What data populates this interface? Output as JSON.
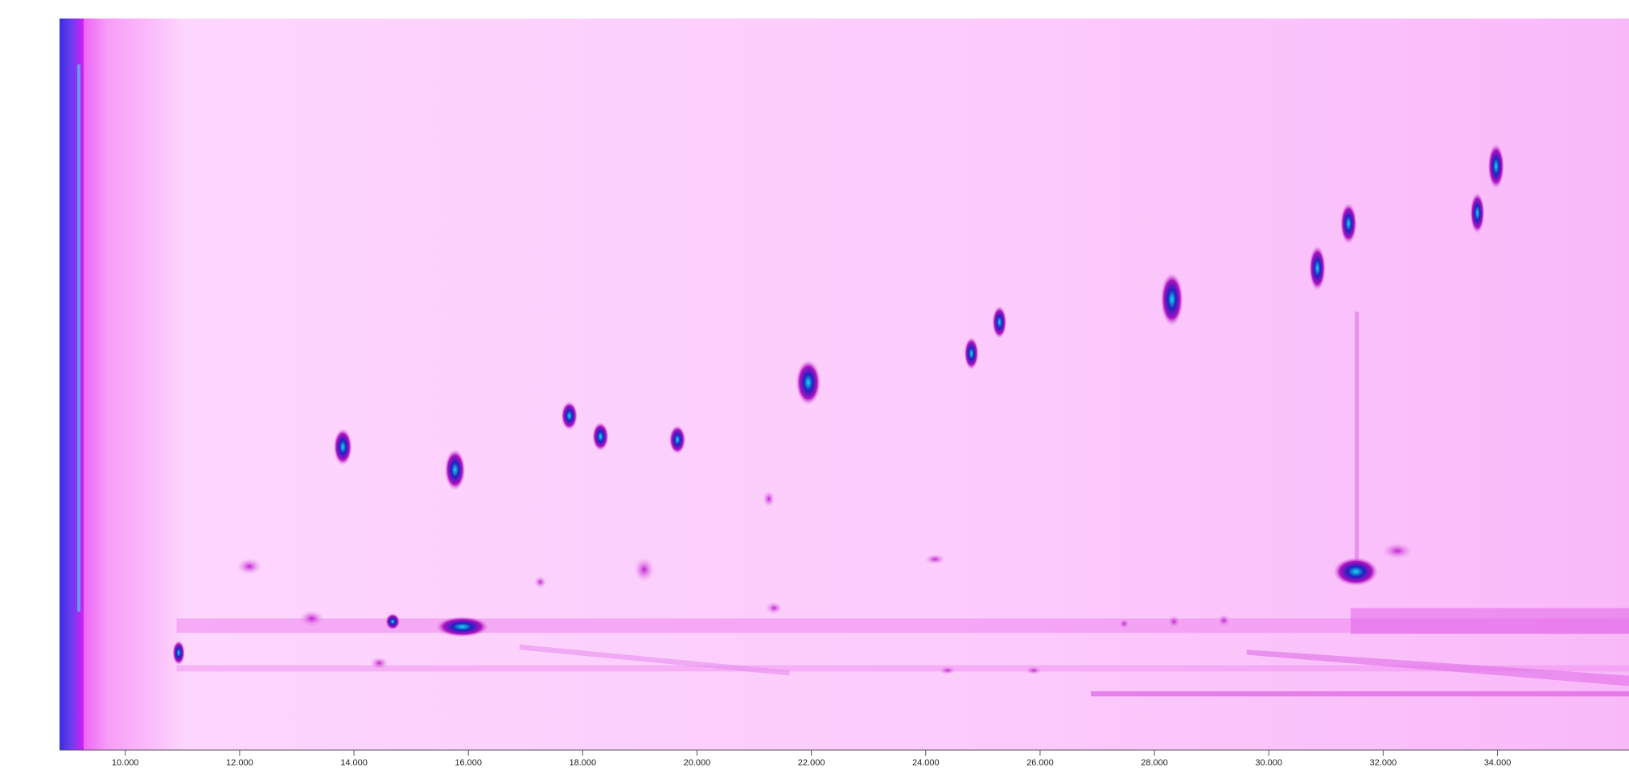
{
  "chart_data": {
    "type": "heatmap",
    "xlim": [
      8.85,
      36.3
    ],
    "xticks": [
      {
        "value": 10,
        "label": "10.000"
      },
      {
        "value": 12,
        "label": "12.000"
      },
      {
        "value": 14,
        "label": "14.000"
      },
      {
        "value": 16,
        "label": "16.000"
      },
      {
        "value": 18,
        "label": "18.000"
      },
      {
        "value": 20,
        "label": "20.000"
      },
      {
        "value": 22,
        "label": "22.000"
      },
      {
        "value": 24,
        "label": "24.000"
      },
      {
        "value": 26,
        "label": "26.000"
      },
      {
        "value": 28,
        "label": "28.000"
      },
      {
        "value": 30,
        "label": "30.000"
      },
      {
        "value": 32,
        "label": "32.000"
      },
      {
        "value": 34,
        "label": "34.000"
      }
    ],
    "axis_color": "#555555"
  }
}
